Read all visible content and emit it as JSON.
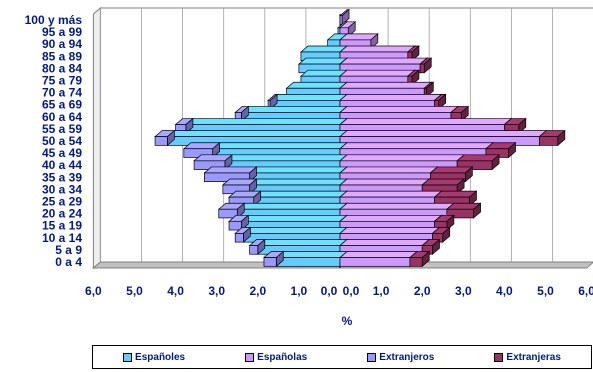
{
  "chart_data": {
    "type": "bar",
    "orientation": "horizontal",
    "style": "population-pyramid-3d",
    "categories": [
      "0 a 4",
      "5 a 9",
      "10 a 14",
      "15 a 19",
      "20 a 24",
      "25 a 29",
      "30 a 34",
      "35 a 39",
      "40 a 44",
      "45 a 49",
      "50 a 54",
      "55 a 59",
      "60 a 64",
      "65 a 69",
      "70 a 74",
      "75 a 79",
      "80 a 84",
      "85 a 89",
      "90 a 94",
      "95 a 99",
      "100 y más"
    ],
    "series": [
      {
        "name": "Españoles",
        "side": "left",
        "color": "#66ccff",
        "values": [
          1.55,
          2.0,
          2.35,
          2.4,
          2.5,
          2.1,
          2.2,
          2.2,
          2.8,
          3.1,
          4.2,
          3.75,
          2.4,
          1.7,
          1.3,
          0.95,
          1.0,
          0.95,
          0.3,
          0.05,
          0.0
        ]
      },
      {
        "name": "Extranjeros",
        "side": "left",
        "color": "#9999ff",
        "values": [
          0.3,
          0.2,
          0.2,
          0.3,
          0.45,
          0.6,
          0.65,
          1.1,
          0.75,
          0.7,
          0.3,
          0.25,
          0.15,
          0.05,
          0.0,
          0.0,
          0.0,
          0.0,
          0.0,
          0.0,
          0.0
        ]
      },
      {
        "name": "Españolas",
        "side": "right",
        "color": "#cc99ff",
        "values": [
          1.7,
          2.0,
          2.25,
          2.3,
          2.6,
          2.3,
          2.0,
          2.2,
          2.85,
          3.55,
          4.85,
          4.0,
          2.7,
          2.3,
          2.05,
          1.65,
          1.95,
          1.65,
          0.75,
          0.2,
          0.05
        ]
      },
      {
        "name": "Extranjeras",
        "side": "right",
        "color": "#993366",
        "values": [
          0.3,
          0.25,
          0.25,
          0.3,
          0.65,
          0.85,
          0.85,
          0.85,
          0.85,
          0.55,
          0.45,
          0.35,
          0.25,
          0.1,
          0.05,
          0.1,
          0.1,
          0.1,
          0.0,
          0.0,
          0.0
        ]
      }
    ],
    "xlabel": "%",
    "x_ticks": [
      "6,0",
      "5,0",
      "4,0",
      "3,0",
      "2,0",
      "1,0",
      "0,0",
      "0,0",
      "1,0",
      "2,0",
      "3,0",
      "4,0",
      "5,0",
      "6,0"
    ],
    "xlim": [
      -6,
      6
    ],
    "grid": true,
    "legend_position": "bottom"
  }
}
